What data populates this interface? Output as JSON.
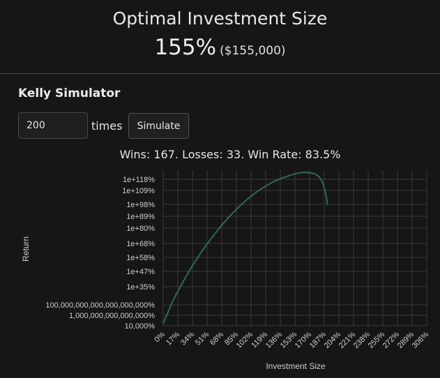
{
  "header": {
    "title": "Optimal Investment Size",
    "percent": "155%",
    "dollars": "($155,000)"
  },
  "simulator": {
    "title": "Kelly Simulator",
    "times_value": "200",
    "times_label": "times",
    "simulate_label": "Simulate",
    "stats": "Wins: 167. Losses: 33. Win Rate: 83.5%"
  },
  "colors": {
    "background": "#161616",
    "line": "#2e6a52",
    "grid": "#3a3a3a"
  },
  "chart_data": {
    "type": "line",
    "xlabel": "Investment Size",
    "ylabel": "Return",
    "x_ticks": [
      "0%",
      "17%",
      "34%",
      "51%",
      "68%",
      "85%",
      "102%",
      "119%",
      "136%",
      "153%",
      "170%",
      "187%",
      "204%",
      "221%",
      "238%",
      "255%",
      "272%",
      "289%",
      "306%"
    ],
    "y_ticks": [
      "1e+118%",
      "1e+109%",
      "1e+98%",
      "1e+89%",
      "1e+80%",
      "1e+68%",
      "1e+58%",
      "1e+47%",
      "1e+35%",
      "100,000,000,000,000,000,000%",
      "1,000,000,000,000,000%",
      "10,000%"
    ],
    "y_scale": "log",
    "grid": true,
    "series": [
      {
        "points": [
          [
            0,
            2
          ],
          [
            5,
            9
          ],
          [
            10,
            16
          ],
          [
            15,
            22
          ],
          [
            17,
            24
          ],
          [
            25,
            33
          ],
          [
            34,
            42
          ],
          [
            45,
            52
          ],
          [
            51,
            57
          ],
          [
            60,
            64
          ],
          [
            68,
            70
          ],
          [
            77,
            76
          ],
          [
            85,
            81
          ],
          [
            94,
            86
          ],
          [
            102,
            90
          ],
          [
            111,
            94
          ],
          [
            119,
            97
          ],
          [
            128,
            100
          ],
          [
            136,
            102
          ],
          [
            145,
            104
          ],
          [
            153,
            105.5
          ],
          [
            160,
            106.3
          ],
          [
            165,
            106.5
          ],
          [
            170,
            106.3
          ],
          [
            177,
            105.2
          ],
          [
            180,
            104
          ],
          [
            183,
            102
          ],
          [
            186,
            98
          ],
          [
            189,
            91
          ],
          [
            191,
            84
          ]
        ]
      }
    ]
  }
}
